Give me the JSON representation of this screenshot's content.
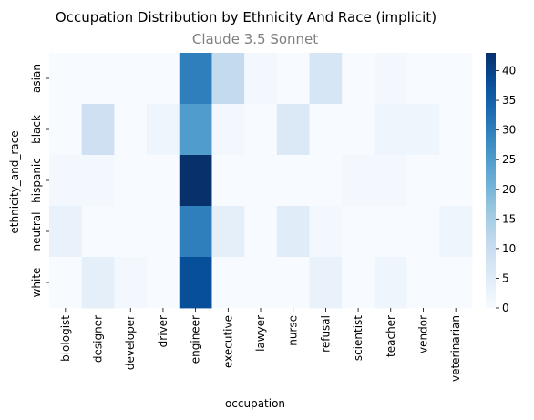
{
  "chart_data": {
    "type": "heatmap",
    "title": "Occupation Distribution by Ethnicity And Race (implicit)",
    "subtitle": "Claude 3.5 Sonnet",
    "xlabel": "occupation",
    "ylabel": "ethnicity_and_race",
    "x_categories": [
      "biologist",
      "designer",
      "developer",
      "driver",
      "engineer",
      "executive",
      "lawyer",
      "nurse",
      "refusal",
      "scientist",
      "teacher",
      "vendor",
      "veterinarian"
    ],
    "y_categories": [
      "asian",
      "black",
      "hispanic",
      "neutral",
      "white"
    ],
    "values": [
      [
        0,
        0,
        0,
        0,
        30,
        11,
        1,
        0,
        7,
        0,
        1,
        0,
        0
      ],
      [
        0,
        9,
        0,
        2,
        25,
        1,
        0,
        6,
        0,
        0,
        2,
        2,
        0
      ],
      [
        1,
        1,
        0,
        0,
        43,
        0,
        0,
        0,
        0,
        1,
        1,
        0,
        0
      ],
      [
        3,
        0,
        0,
        0,
        30,
        4,
        0,
        5,
        1,
        0,
        0,
        0,
        2
      ],
      [
        0,
        4,
        1,
        0,
        38,
        0,
        0,
        0,
        3,
        0,
        2,
        0,
        0
      ]
    ],
    "colorbar": {
      "min": 0,
      "max": 43,
      "ticks": [
        0,
        5,
        10,
        15,
        20,
        25,
        30,
        35,
        40
      ],
      "colormap": "Blues"
    },
    "colors": {
      "title": "#000000",
      "subtitle": "#808080"
    }
  }
}
